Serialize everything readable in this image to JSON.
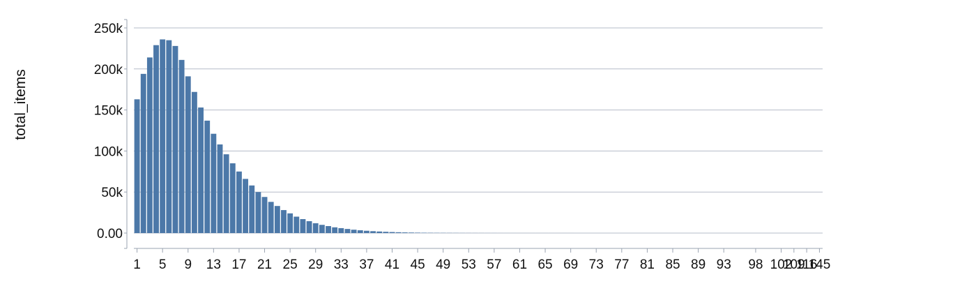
{
  "chart_data": {
    "type": "bar",
    "ylabel": "total_items",
    "xlabel": "",
    "ylim": [
      0,
      250000
    ],
    "y_ticks": [
      0,
      50000,
      100000,
      150000,
      200000,
      250000
    ],
    "y_tick_labels": [
      "0.00",
      "50k",
      "100k",
      "150k",
      "200k",
      "250k"
    ],
    "grid": true,
    "colors": {
      "bar": "#4c78a8"
    },
    "categories": [
      "1",
      "2",
      "3",
      "4",
      "5",
      "6",
      "7",
      "8",
      "9",
      "10",
      "11",
      "12",
      "13",
      "14",
      "15",
      "16",
      "17",
      "18",
      "19",
      "20",
      "21",
      "22",
      "23",
      "24",
      "25",
      "26",
      "27",
      "28",
      "29",
      "30",
      "31",
      "32",
      "33",
      "34",
      "35",
      "36",
      "37",
      "38",
      "39",
      "40",
      "41",
      "42",
      "43",
      "44",
      "45",
      "46",
      "47",
      "48",
      "49",
      "50",
      "51",
      "52",
      "53",
      "54",
      "55",
      "56",
      "57",
      "58",
      "59",
      "60",
      "61",
      "62",
      "63",
      "64",
      "65",
      "66",
      "67",
      "68",
      "69",
      "70",
      "71",
      "72",
      "73",
      "74",
      "75",
      "76",
      "77",
      "78",
      "79",
      "80",
      "81",
      "82",
      "83",
      "84",
      "85",
      "86",
      "87",
      "88",
      "89",
      "90",
      "91",
      "92",
      "93",
      "94",
      "95",
      "96",
      "97",
      "98",
      "99",
      "100",
      "101",
      "102",
      "105",
      "109",
      "113",
      "116",
      "120",
      "145"
    ],
    "x_tick_labels": [
      "1",
      "5",
      "9",
      "13",
      "17",
      "21",
      "25",
      "29",
      "33",
      "37",
      "41",
      "45",
      "49",
      "53",
      "57",
      "61",
      "65",
      "69",
      "73",
      "77",
      "81",
      "85",
      "89",
      "93",
      "98",
      "102",
      "109",
      "116",
      "145"
    ],
    "values": [
      163000,
      194000,
      214000,
      229000,
      236000,
      235000,
      228000,
      211000,
      191000,
      172000,
      153000,
      137000,
      121000,
      108000,
      96000,
      85000,
      75000,
      66000,
      58000,
      50000,
      44000,
      38000,
      33000,
      28000,
      24000,
      20000,
      17000,
      14500,
      12000,
      10000,
      8500,
      7000,
      6000,
      5000,
      4100,
      3400,
      2800,
      2300,
      1900,
      1550,
      1250,
      1000,
      800,
      650,
      520,
      420,
      340,
      270,
      220,
      180,
      150,
      120,
      100,
      80,
      65,
      52,
      42,
      34,
      28,
      23,
      19,
      16,
      13,
      11,
      9,
      8,
      7,
      6,
      5,
      4,
      4,
      3,
      3,
      3,
      2,
      2,
      2,
      2,
      2,
      1,
      1,
      1,
      1,
      1,
      1,
      1,
      1,
      1,
      1,
      1,
      1,
      1,
      1,
      1,
      1,
      1,
      1,
      1,
      1,
      1,
      1,
      1,
      1,
      1,
      1,
      1,
      1,
      1
    ]
  }
}
